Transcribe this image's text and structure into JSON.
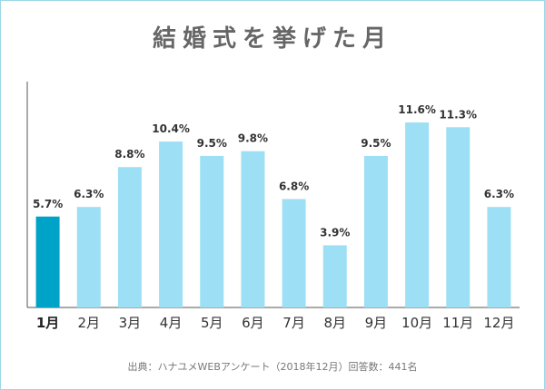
{
  "title": "結婚式を挙げた月",
  "source": "出典：ハナユメWEBアンケート（2018年12月）回答数：441名",
  "colors": {
    "bar": "#9ddff4",
    "highlight": "#00a3c8",
    "axis": "#555555",
    "frame": "#9bd8e8"
  },
  "chart_data": {
    "type": "bar",
    "categories": [
      "1月",
      "2月",
      "3月",
      "4月",
      "5月",
      "6月",
      "7月",
      "8月",
      "9月",
      "10月",
      "11月",
      "12月"
    ],
    "values": [
      5.7,
      6.3,
      8.8,
      10.4,
      9.5,
      9.8,
      6.8,
      3.9,
      9.5,
      11.6,
      11.3,
      6.3
    ],
    "labels": [
      "5.7%",
      "6.3%",
      "8.8%",
      "10.4%",
      "9.5%",
      "9.8%",
      "6.8%",
      "3.9%",
      "9.5%",
      "11.6%",
      "11.3%",
      "6.3%"
    ],
    "highlight_index": 0,
    "ylim": [
      0,
      11.6
    ],
    "grid": false,
    "legend": "none"
  }
}
